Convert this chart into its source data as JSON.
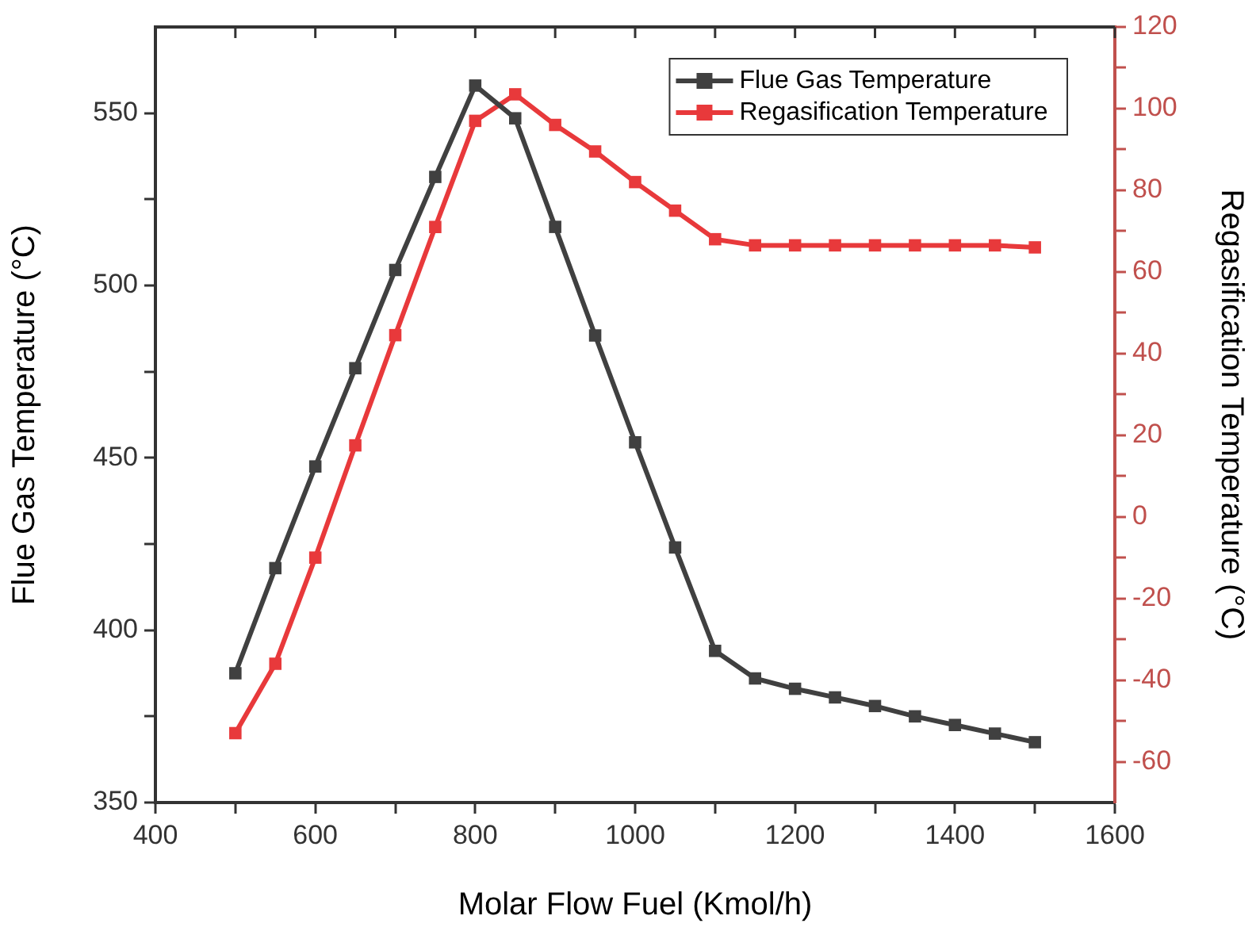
{
  "chart_data": {
    "type": "line",
    "xlabel": "Molar Flow Fuel (Kmol/h)",
    "ylabel": "Flue Gas Temperature (°C)",
    "y2label": "Regasification Temperature (°C)",
    "x": [
      500,
      550,
      600,
      650,
      700,
      750,
      800,
      850,
      900,
      950,
      1000,
      1050,
      1100,
      1150,
      1200,
      1250,
      1300,
      1350,
      1400,
      1450,
      1500
    ],
    "series": [
      {
        "name": "Flue Gas Temperature",
        "color": "#404040",
        "values": [
          387.5,
          418,
          447.5,
          476,
          504.5,
          531.5,
          558,
          548.5,
          517,
          485.5,
          454.5,
          424,
          394,
          386,
          383,
          380.5,
          378,
          375,
          372.5,
          370,
          367.5
        ]
      },
      {
        "name": "Regasification Temperature",
        "color": "#e8393b",
        "axis": "y2",
        "values": [
          -53,
          -36,
          -10,
          17.5,
          44.5,
          71,
          97,
          103.5,
          96,
          89.5,
          82,
          75,
          68,
          66.5,
          66.5,
          66.5,
          66.5,
          66.5,
          66.5,
          66.5,
          66
        ]
      }
    ],
    "xlim": [
      400,
      1600
    ],
    "xticks": [
      400,
      {
        "value": 500,
        "label": null
      },
      600,
      {
        "value": 700,
        "label": null
      },
      800,
      {
        "value": 900,
        "label": null
      },
      1000,
      {
        "value": 1100,
        "label": null
      },
      1200,
      {
        "value": 1300,
        "label": null
      },
      1400,
      {
        "value": 1500,
        "label": null
      },
      1600
    ],
    "ylim": [
      350,
      575
    ],
    "yticks": [
      350,
      {
        "value": 375,
        "label": null
      },
      400,
      {
        "value": 425,
        "label": null
      },
      450,
      {
        "value": 475,
        "label": null
      },
      500,
      {
        "value": 525,
        "label": null
      },
      550
    ],
    "y2lim": [
      -70,
      120
    ],
    "y2ticks": [
      -60,
      {
        "value": -50,
        "label": null
      },
      -40,
      {
        "value": -30,
        "label": null
      },
      -20,
      {
        "value": -10,
        "label": null
      },
      0,
      {
        "value": 10,
        "label": null
      },
      20,
      {
        "value": 30,
        "label": null
      },
      40,
      {
        "value": 50,
        "label": null
      },
      60,
      {
        "value": 70,
        "label": null
      },
      80,
      {
        "value": 90,
        "label": null
      },
      100,
      {
        "value": 110,
        "label": null
      },
      120
    ],
    "legend": "top right",
    "marker": "square",
    "grid": false
  }
}
